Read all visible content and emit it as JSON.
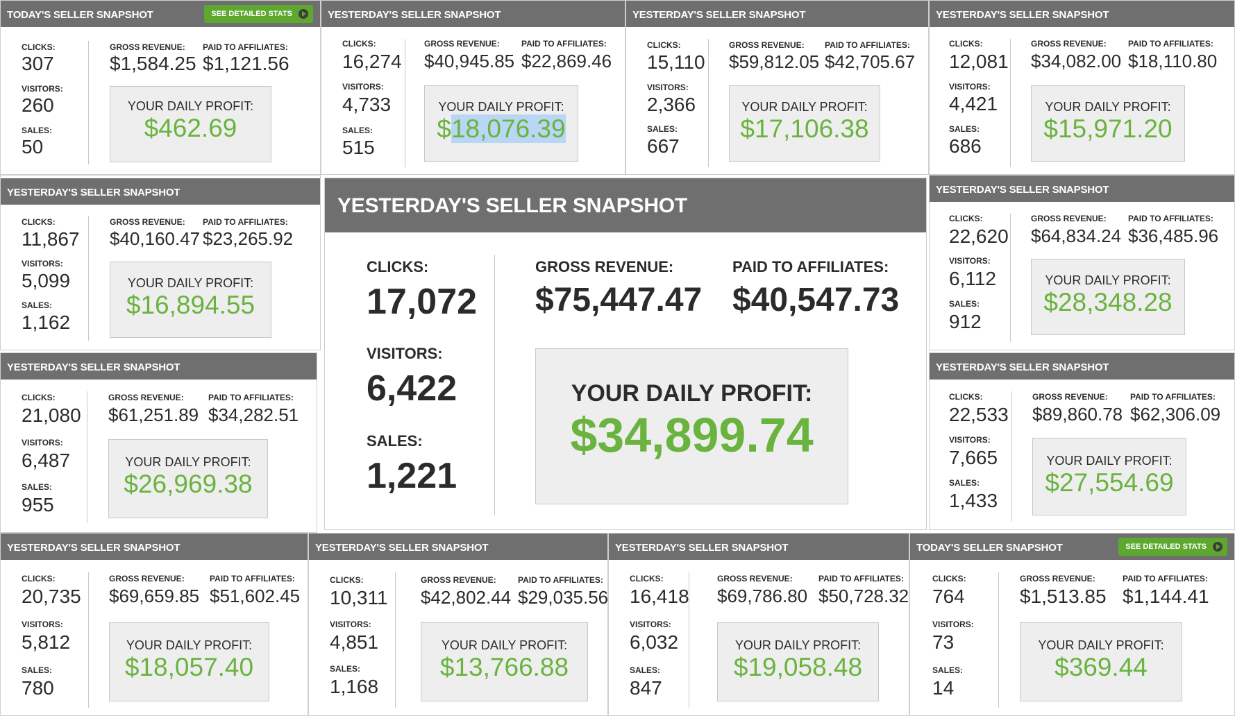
{
  "labels": {
    "clicks": "CLICKS:",
    "visitors": "VISITORS:",
    "sales": "SALES:",
    "gross_revenue": "GROSS REVENUE:",
    "paid_to_affiliates": "PAID TO AFFILIATES:",
    "daily_profit": "YOUR DAILY PROFIT:",
    "see_detailed_stats": "SEE DETAILED STATS"
  },
  "colors": {
    "header": "#6f6f6f",
    "profit": "#69b33e",
    "button": "#5fa830",
    "box": "#eeeeee"
  },
  "cards": [
    {
      "title": "TODAY'S SELLER SNAPSHOT",
      "clicks": "307",
      "visitors": "260",
      "sales": "50",
      "gross": "$1,584.25",
      "paid": "$1,121.56",
      "profit": "$462.69"
    },
    {
      "title": "YESTERDAY'S SELLER SNAPSHOT",
      "clicks": "16,274",
      "visitors": "4,733",
      "sales": "515",
      "gross": "$40,945.85",
      "paid": "$22,869.46",
      "profit_prefix": "$",
      "profit_selected": "18,076.39"
    },
    {
      "title": "YESTERDAY'S SELLER SNAPSHOT",
      "clicks": "15,110",
      "visitors": "2,366",
      "sales": "667",
      "gross": "$59,812.05",
      "paid": "$42,705.67",
      "profit": "$17,106.38"
    },
    {
      "title": "YESTERDAY'S SELLER SNAPSHOT",
      "clicks": "12,081",
      "visitors": "4,421",
      "sales": "686",
      "gross": "$34,082.00",
      "paid": "$18,110.80",
      "profit": "$15,971.20"
    },
    {
      "title": "YESTERDAY'S SELLER SNAPSHOT",
      "clicks": "11,867",
      "visitors": "5,099",
      "sales": "1,162",
      "gross": "$40,160.47",
      "paid": "$23,265.92",
      "profit": "$16,894.55"
    },
    {
      "title": "YESTERDAY'S SELLER SNAPSHOT",
      "clicks": "17,072",
      "visitors": "6,422",
      "sales": "1,221",
      "gross": "$75,447.47",
      "paid": "$40,547.73",
      "profit": "$34,899.74"
    },
    {
      "title": "YESTERDAY'S SELLER SNAPSHOT",
      "clicks": "22,620",
      "visitors": "6,112",
      "sales": "912",
      "gross": "$64,834.24",
      "paid": "$36,485.96",
      "profit": "$28,348.28"
    },
    {
      "title": "YESTERDAY'S SELLER SNAPSHOT",
      "clicks": "21,080",
      "visitors": "6,487",
      "sales": "955",
      "gross": "$61,251.89",
      "paid": "$34,282.51",
      "profit": "$26,969.38"
    },
    {
      "title": "YESTERDAY'S SELLER SNAPSHOT",
      "clicks": "22,533",
      "visitors": "7,665",
      "sales": "1,433",
      "gross": "$89,860.78",
      "paid": "$62,306.09",
      "profit": "$27,554.69"
    },
    {
      "title": "YESTERDAY'S SELLER SNAPSHOT",
      "clicks": "20,735",
      "visitors": "5,812",
      "sales": "780",
      "gross": "$69,659.85",
      "paid": "$51,602.45",
      "profit": "$18,057.40"
    },
    {
      "title": "YESTERDAY'S SELLER SNAPSHOT",
      "clicks": "10,311",
      "visitors": "4,851",
      "sales": "1,168",
      "gross": "$42,802.44",
      "paid": "$29,035.56",
      "profit": "$13,766.88"
    },
    {
      "title": "YESTERDAY'S SELLER SNAPSHOT",
      "clicks": "16,418",
      "visitors": "6,032",
      "sales": "847",
      "gross": "$69,786.80",
      "paid": "$50,728.32",
      "profit": "$19,058.48"
    },
    {
      "title": "TODAY'S SELLER SNAPSHOT",
      "clicks": "764",
      "visitors": "73",
      "sales": "14",
      "gross": "$1,513.85",
      "paid": "$1,144.41",
      "profit": "$369.44"
    }
  ]
}
